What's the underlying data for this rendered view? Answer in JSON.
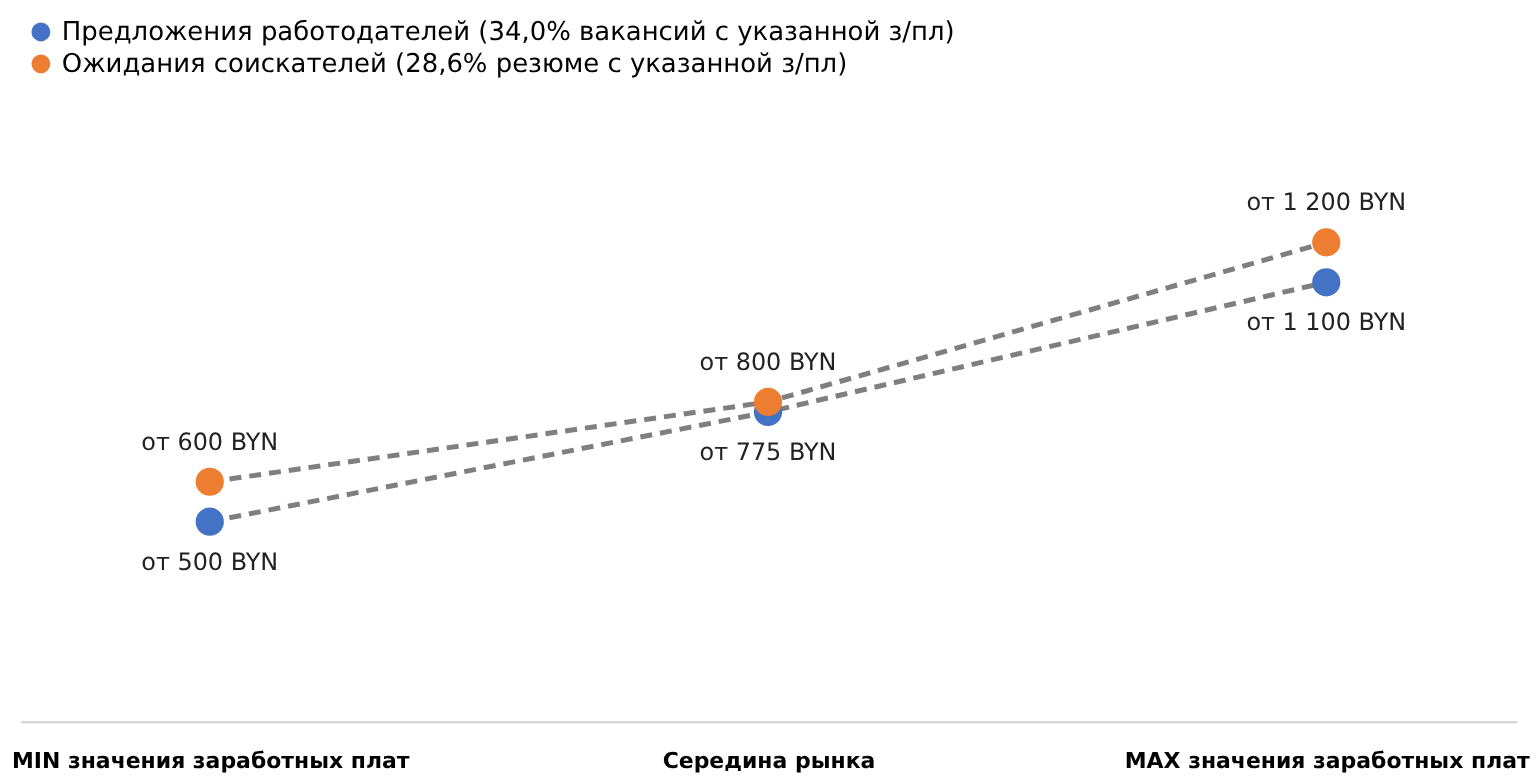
{
  "chart_data": {
    "type": "line",
    "categories": [
      "MIN значения заработных плат",
      "Середина рынка",
      "MAX значения заработных плат"
    ],
    "series": [
      {
        "name": "Предложения работодателей (34,0% вакансий с указанной з/пл)",
        "color": "#4472c4",
        "values": [
          500,
          775,
          1100
        ],
        "value_labels": [
          "от 500 BYN",
          "от 775 BYN",
          "от 1 100 BYN"
        ]
      },
      {
        "name": "Ожидания соискателей (28,6% резюме с указанной з/пл)",
        "color": "#ed7d31",
        "values": [
          600,
          800,
          1200
        ],
        "value_labels": [
          "от 600 BYN",
          "от 800 BYN",
          "от 1 200 BYN"
        ]
      }
    ],
    "marker": "circle",
    "line_style": "dashed",
    "legend": "top",
    "grid": false,
    "tick_labels": "x"
  }
}
